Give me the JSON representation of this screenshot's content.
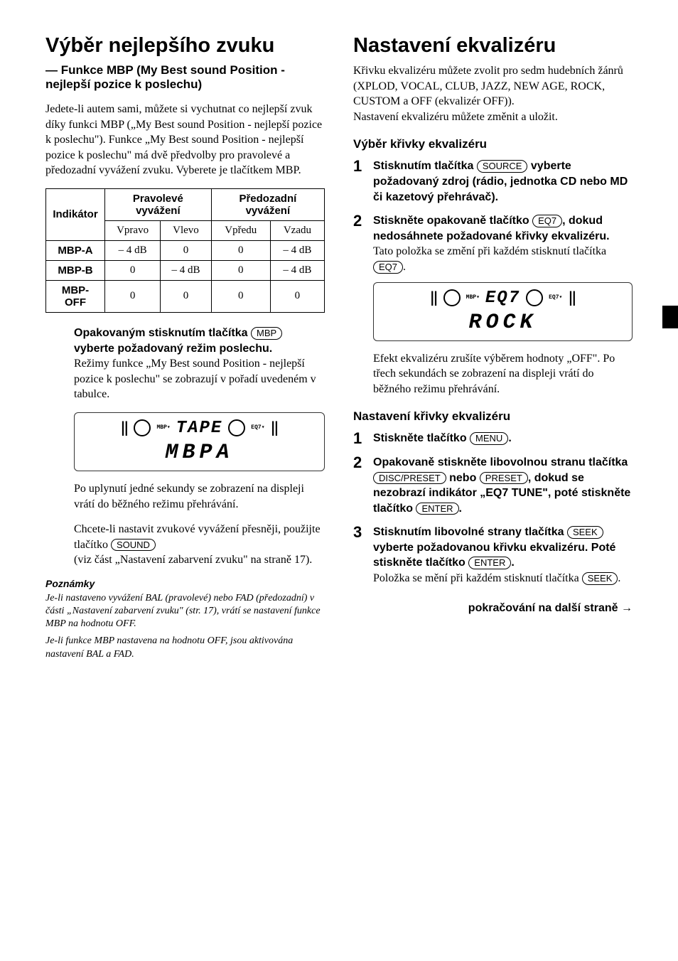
{
  "left": {
    "h1": "Výběr nejlepšího zvuku",
    "subtitle": "— Funkce MBP (My Best sound Position - nejlepší pozice k poslechu)",
    "intro": "Jedete-li autem sami, můžete si vychutnat co nejlepší zvuk díky funkci MBP („My Best sound Position - nejlepší pozice k poslechu\"). Funkce „My Best sound Position - nejlepší pozice k poslechu\" má dvě předvolby pro pravolevé a předozadní vyvážení zvuku. Vyberete je tlačítkem MBP.",
    "table": {
      "headers": {
        "indicator": "Indikátor",
        "lr": "Pravolevé vyvážení",
        "fb": "Předozadní vyvážení",
        "right": "Vpravo",
        "left": "Vlevo",
        "front": "Vpředu",
        "rear": "Vzadu"
      },
      "rows": [
        {
          "label": "MBP-A",
          "r": "– 4 dB",
          "l": "0",
          "f": "0",
          "b": "– 4 dB"
        },
        {
          "label": "MBP-B",
          "r": "0",
          "l": "– 4 dB",
          "f": "0",
          "b": "– 4 dB"
        },
        {
          "label": "MBP-OFF",
          "r": "0",
          "l": "0",
          "f": "0",
          "b": "0"
        }
      ]
    },
    "instruct": {
      "pre": "Opakovaným stisknutím tlačítka ",
      "btn": "MBP",
      "post": " vyberte požadovaný režim poslechu.",
      "note": "Režimy funkce „My Best sound Position - nejlepší pozice k poslechu\" se zobrazují v pořadí uvedeném v tabulce."
    },
    "display": {
      "word1": "TAPE",
      "mbp": "MBP▾",
      "eq7": "EQ7▾",
      "big": "MBPA"
    },
    "after1": "Po uplynutí jedné sekundy se zobrazení na displeji vrátí do běžného režimu přehrávání.",
    "after2_pre": "Chcete-li nastavit zvukové vyvážení přesněji, použijte tlačítko ",
    "after2_btn": "SOUND",
    "after2_post": " (viz část „Nastavení zabarvení zvuku\" na straně 17).",
    "notes_heading": "Poznámky",
    "note1": "Je-li nastaveno vyvážení BAL (pravolevé) nebo FAD (předozadní) v části „Nastavení zabarvení zvuku\" (str. 17), vrátí se nastavení funkce MBP na hodnotu OFF.",
    "note2": "Je-li funkce MBP nastavena na hodnotu OFF, jsou aktivována nastavení BAL a FAD."
  },
  "right": {
    "h1": "Nastavení ekvalizéru",
    "intro": "Křivku ekvalizéru můžete zvolit pro sedm hudebních žánrů (XPLOD, VOCAL, CLUB, JAZZ, NEW AGE, ROCK, CUSTOM a OFF (ekvalizér OFF)).",
    "intro2": "Nastavení ekvalizéru můžete změnit a uložit.",
    "sec1_h": "Výběr křivky ekvalizéru",
    "step1": {
      "pre": "Stisknutím tlačítka ",
      "btn": "SOURCE",
      "post": " vyberte požadovaný zdroj (rádio, jednotka CD nebo MD či kazetový přehrávač)."
    },
    "step2": {
      "pre": "Stiskněte opakovaně tlačítko ",
      "btn": "EQ7",
      "post": ", dokud nedosáhnete požadované křivky ekvalizéru.",
      "note_pre": "Tato položka se změní při každém stisknutí tlačítka ",
      "note_btn": "EQ7",
      "note_post": "."
    },
    "display": {
      "word1": "EQ7",
      "mbp": "MBP▾",
      "eq7": "EQ7▾",
      "big": "ROCK"
    },
    "after": "Efekt ekvalizéru zrušíte výběrem hodnoty „OFF\". Po třech sekundách se zobrazení na displeji vrátí do běžného režimu přehrávání.",
    "sec2_h": "Nastavení křivky ekvalizéru",
    "s2_step1": {
      "pre": "Stiskněte tlačítko ",
      "btn": "MENU",
      "post": "."
    },
    "s2_step2": {
      "pre": "Opakovaně stiskněte libovolnou stranu tlačítka ",
      "btn1": "DISC/PRESET",
      "mid": " nebo ",
      "btn2": "PRESET",
      "mid2": ", dokud se nezobrazí indikátor „EQ7 TUNE\", poté stiskněte tlačítko ",
      "btn3": "ENTER",
      "post": "."
    },
    "s2_step3": {
      "pre": "Stisknutím libovolné strany tlačítka ",
      "btn1": "SEEK",
      "mid": " vyberte požadovanou křivku ekvalizéru. Poté stiskněte tlačítko ",
      "btn2": "ENTER",
      "post": ".",
      "note_pre": "Položka se mění při každém stisknutí tlačítka ",
      "note_btn": "SEEK",
      "note_post": "."
    },
    "continue": "pokračování na další straně →"
  }
}
